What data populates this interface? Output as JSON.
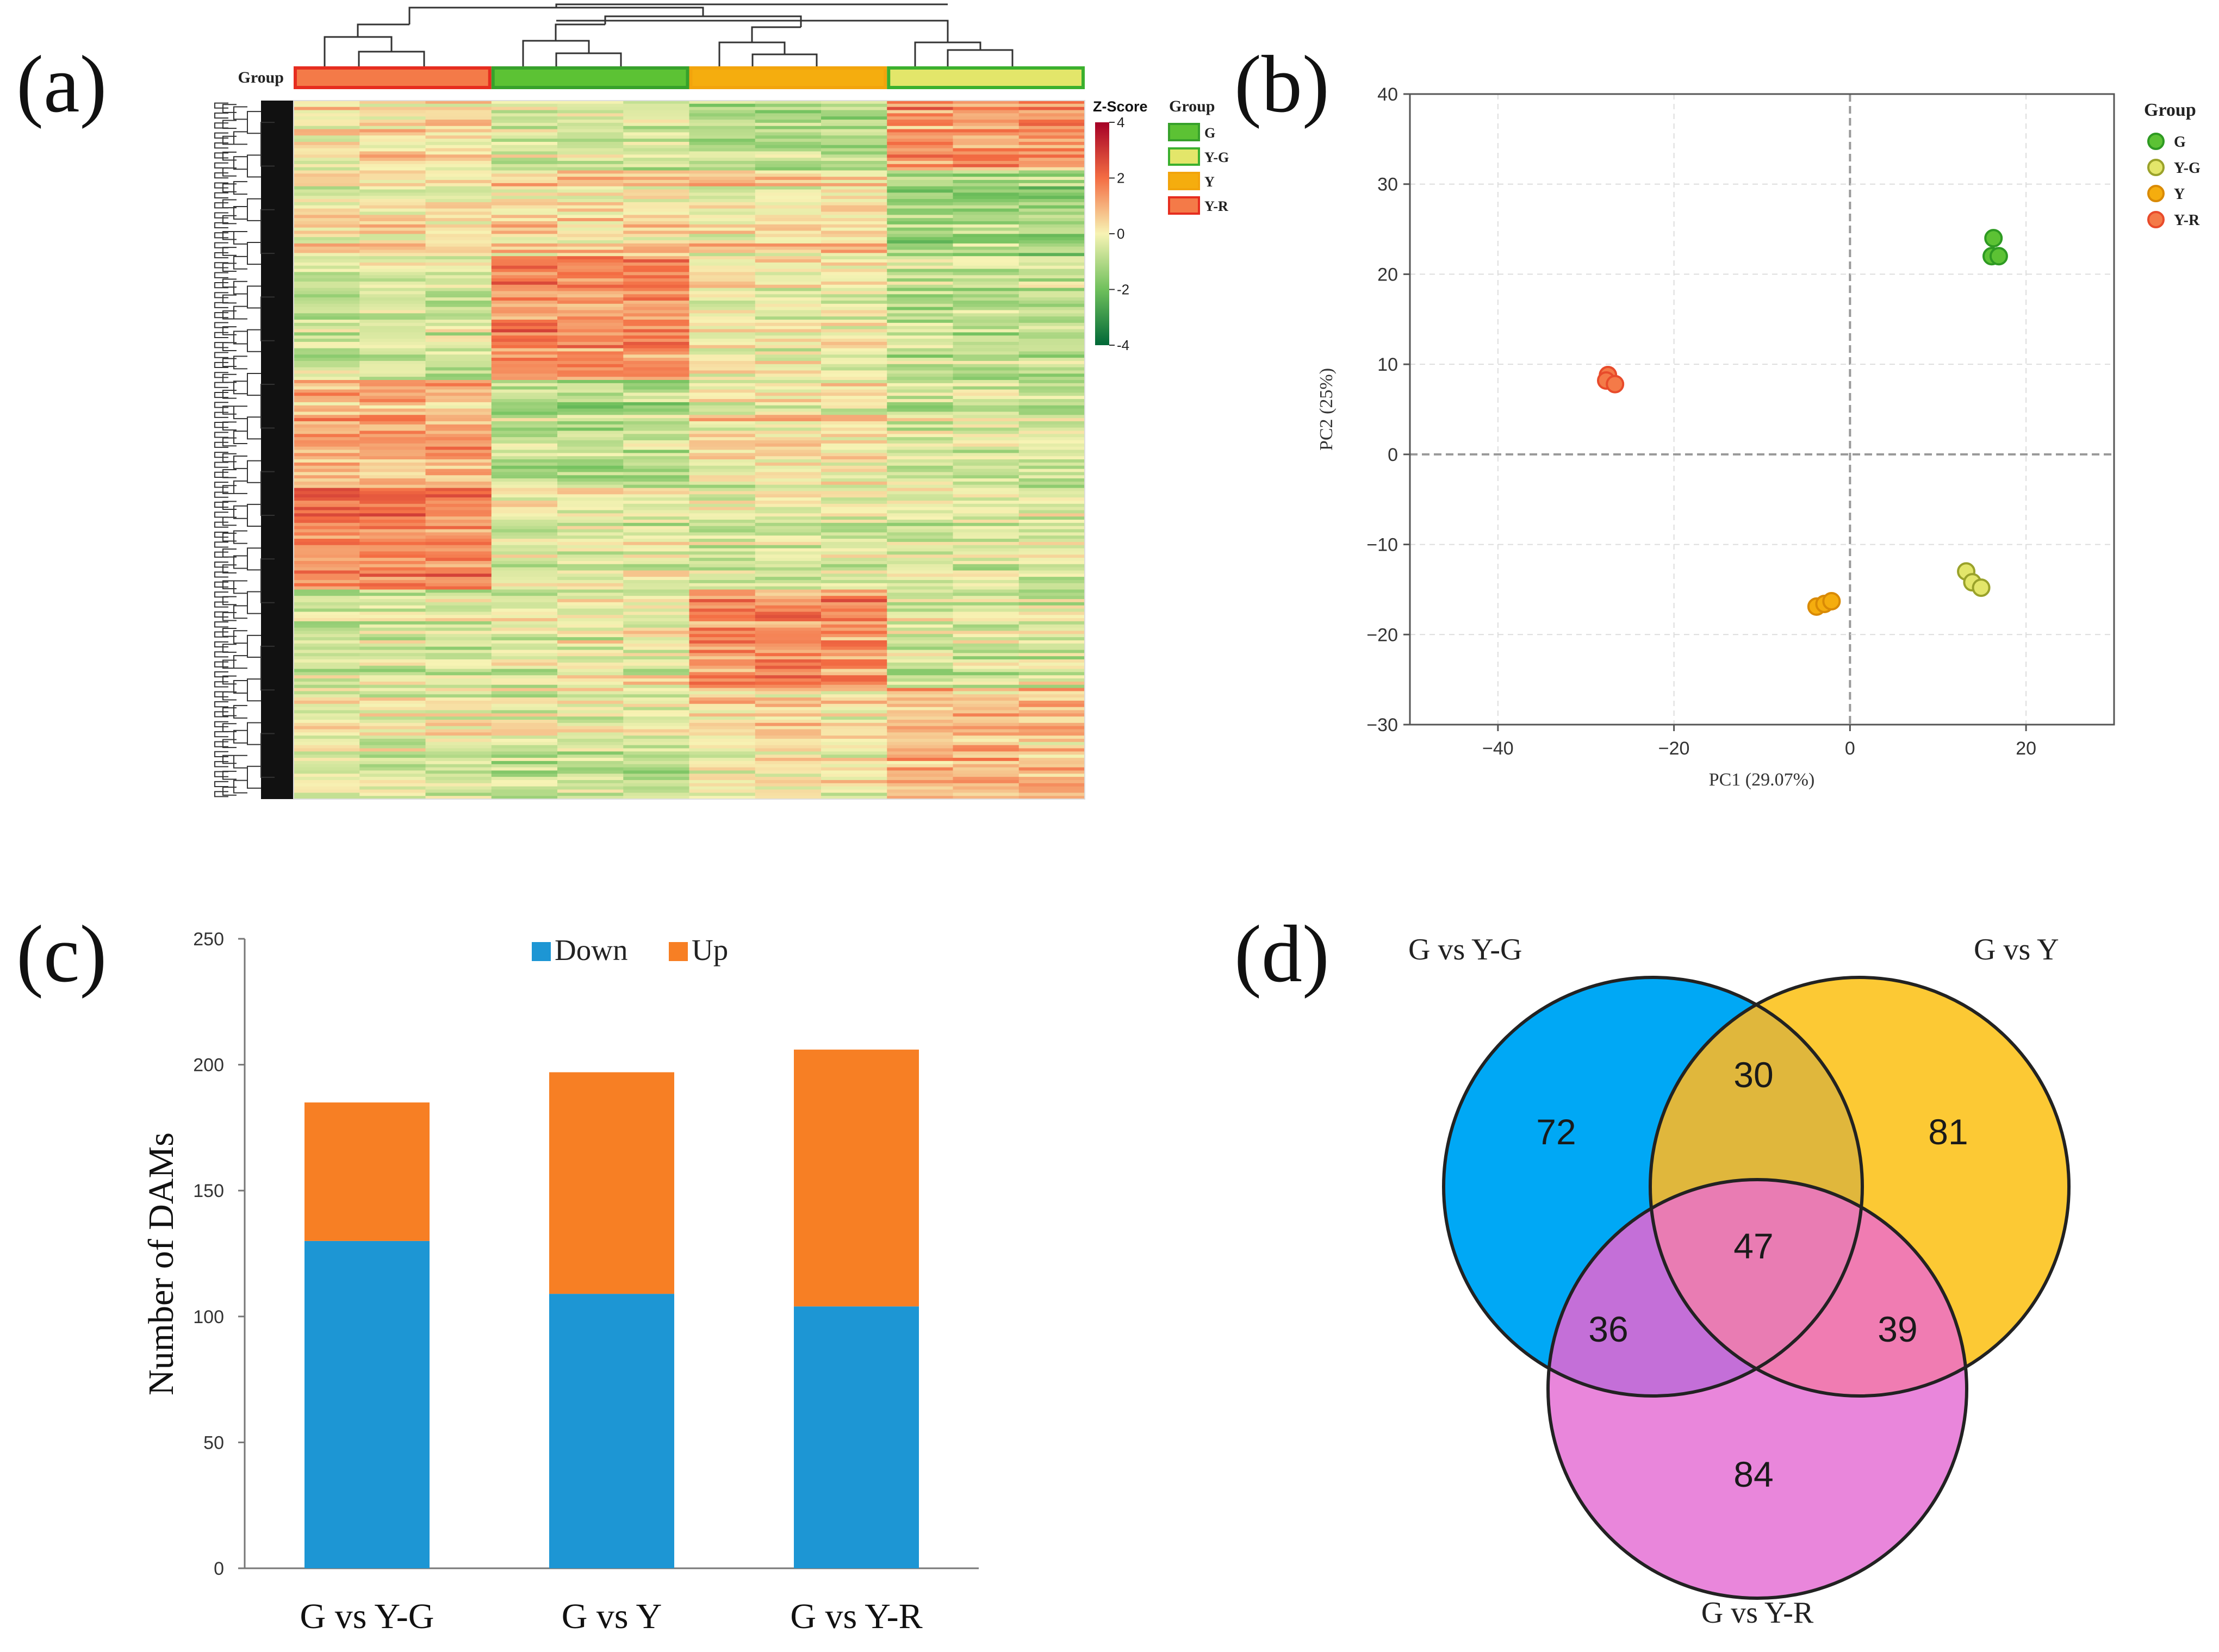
{
  "panel_labels": [
    "(a)",
    "(b)",
    "(c)",
    "(d)"
  ],
  "colors": {
    "G": "#5cc234",
    "Y-G": "#e3e66a",
    "Y": "#f5ad0e",
    "Y-R": "#f47a48",
    "down": "#1d96d4",
    "up": "#f77f24",
    "venn_a": "#00a8f5",
    "venn_b": "#fcc934",
    "venn_c": "#e986db"
  },
  "chart_data": [
    {
      "type": "heatmap",
      "panel": "(a)",
      "group_label": "Group",
      "group_order": [
        "Y-R",
        "G",
        "Y",
        "Y-G"
      ],
      "samples_per_group": 3,
      "colorbar": {
        "title": "Z-Score",
        "ticks": [
          4,
          2,
          0,
          -2,
          -4
        ],
        "range": [
          -4,
          4
        ]
      },
      "legend": {
        "title": "Group",
        "entries": [
          "G",
          "Y-G",
          "Y",
          "Y-R"
        ]
      }
    },
    {
      "type": "scatter",
      "panel": "(b)",
      "xlabel": "PC1 (29.07%)",
      "ylabel": "PC2 (25%)",
      "xlim": [
        -50,
        30
      ],
      "ylim": [
        -30,
        40
      ],
      "xticks": [
        -40,
        -20,
        0,
        20
      ],
      "yticks": [
        -30,
        -20,
        -10,
        0,
        10,
        20,
        30,
        40
      ],
      "grid": true,
      "legend": {
        "title": "Group",
        "position": "top-right"
      },
      "series": [
        {
          "name": "G",
          "points": [
            [
              16.3,
              24.0
            ],
            [
              16.1,
              22.0
            ],
            [
              16.9,
              22.0
            ]
          ]
        },
        {
          "name": "Y-G",
          "points": [
            [
              13.2,
              -13.0
            ],
            [
              13.9,
              -14.2
            ],
            [
              14.9,
              -14.8
            ]
          ]
        },
        {
          "name": "Y",
          "points": [
            [
              -3.8,
              -16.9
            ],
            [
              -2.9,
              -16.6
            ],
            [
              -2.1,
              -16.3
            ]
          ]
        },
        {
          "name": "Y-R",
          "points": [
            [
              -27.5,
              8.8
            ],
            [
              -27.7,
              8.2
            ],
            [
              -26.7,
              7.8
            ]
          ]
        }
      ]
    },
    {
      "type": "bar",
      "panel": "(c)",
      "stacked": true,
      "categories": [
        "G vs Y-G",
        "G vs Y",
        "G vs Y-R"
      ],
      "series": [
        {
          "name": "Down",
          "values": [
            130,
            109,
            104
          ]
        },
        {
          "name": "Up",
          "values": [
            55,
            88,
            102
          ]
        }
      ],
      "xlabel": "",
      "ylabel": "Number of DAMs",
      "ylim": [
        0,
        250
      ],
      "yticks": [
        0,
        50,
        100,
        150,
        200,
        250
      ],
      "legend_position": "top"
    },
    {
      "type": "venn",
      "panel": "(d)",
      "sets": [
        "G vs Y-G",
        "G vs Y",
        "G vs Y-R"
      ],
      "regions": {
        "a_only": 72,
        "b_only": 81,
        "c_only": 84,
        "ab": 30,
        "ac": 36,
        "bc": 39,
        "abc": 47
      }
    }
  ]
}
